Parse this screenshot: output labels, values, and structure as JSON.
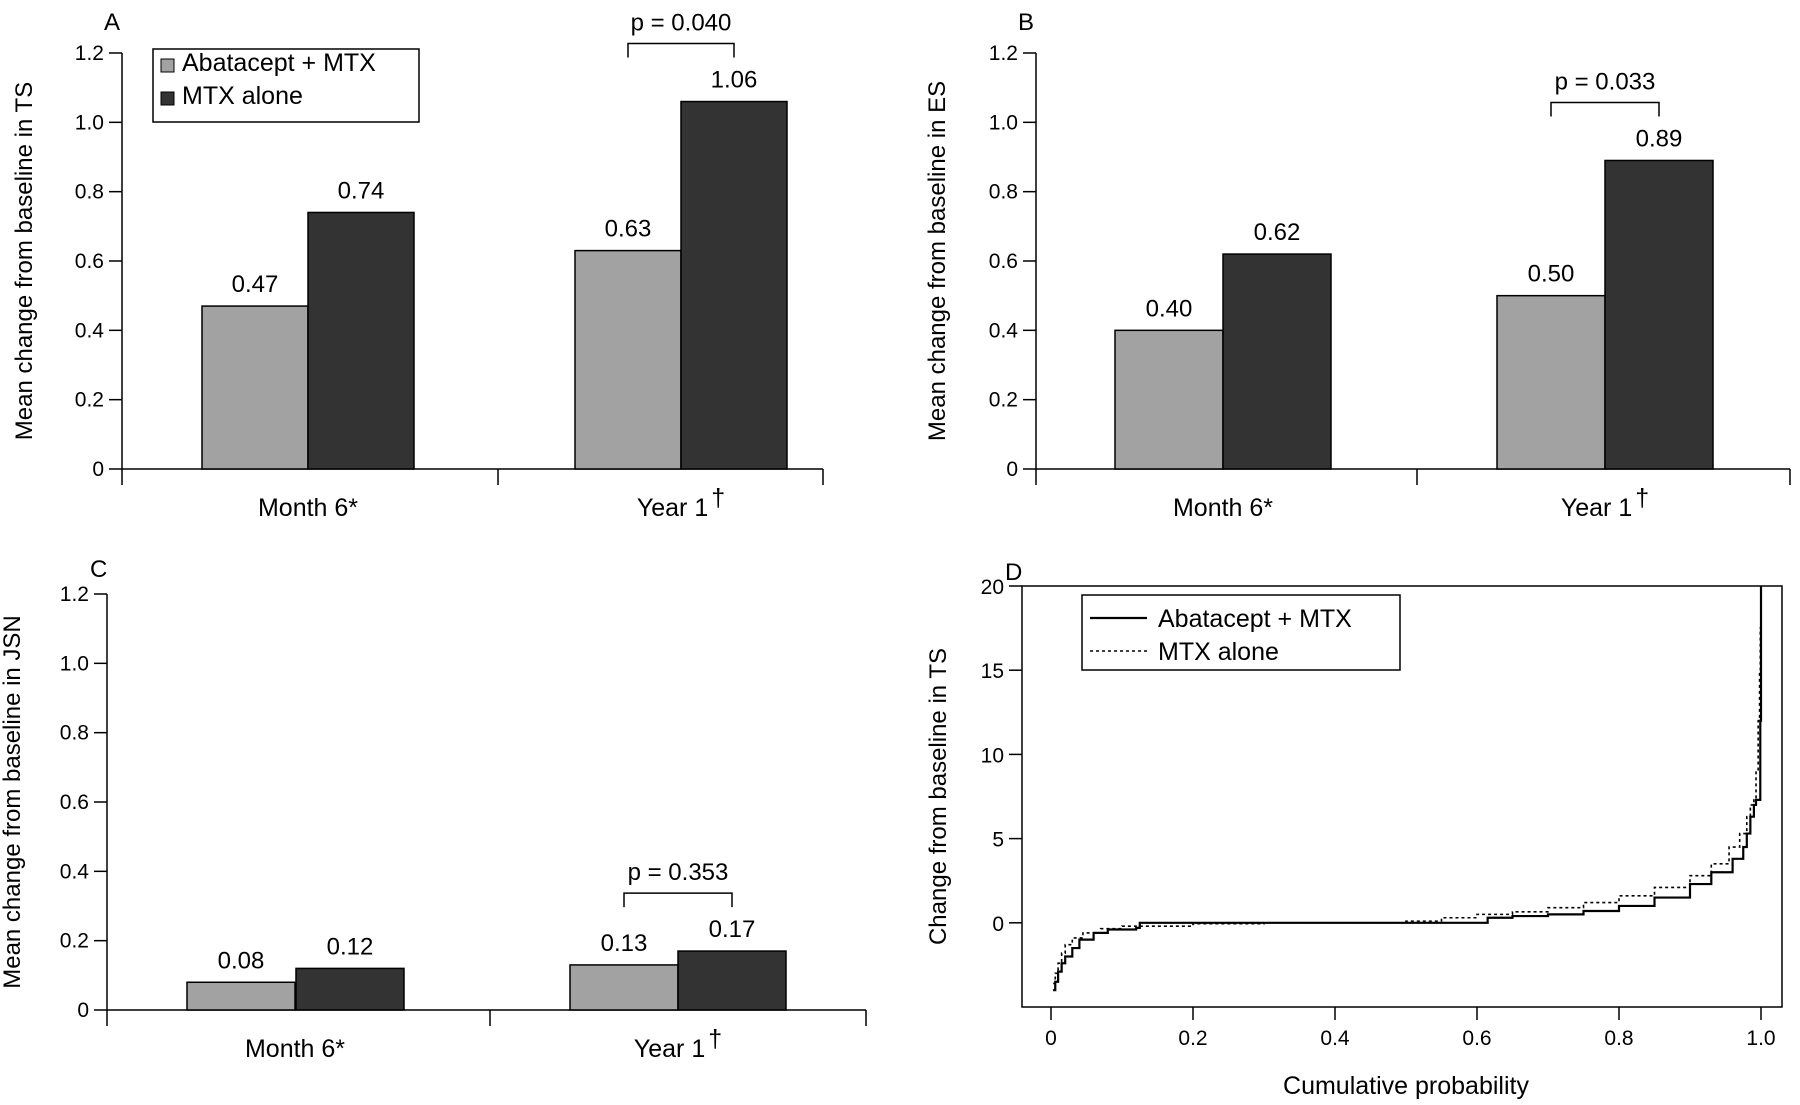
{
  "colors": {
    "abatacept": "#a2a2a2",
    "mtx": "#333333",
    "axis": "#000000"
  },
  "chart_data": [
    {
      "panel": "A",
      "type": "bar",
      "ylabel": "Mean change from baseline in TS",
      "ylim": [
        0,
        1.2
      ],
      "yticks": [
        "0",
        "0.2",
        "0.4",
        "0.6",
        "0.8",
        "1.0",
        "1.2"
      ],
      "categories": [
        "Month 6*",
        "Year 1"
      ],
      "category_marks": [
        "",
        "†"
      ],
      "series": [
        {
          "name": "Abatacept + MTX",
          "values": [
            0.47,
            0.63
          ],
          "labels": [
            "0.47",
            "0.63"
          ]
        },
        {
          "name": "MTX alone",
          "values": [
            0.74,
            1.06
          ],
          "labels": [
            "0.74",
            "1.06"
          ]
        }
      ],
      "pvalue": {
        "category_index": 1,
        "text": "p = 0.040"
      },
      "legend": "top-left"
    },
    {
      "panel": "B",
      "type": "bar",
      "ylabel": "Mean change from baseline in ES",
      "ylim": [
        0,
        1.2
      ],
      "yticks": [
        "0",
        "0.2",
        "0.4",
        "0.6",
        "0.8",
        "1.0",
        "1.2"
      ],
      "categories": [
        "Month 6*",
        "Year 1"
      ],
      "category_marks": [
        "",
        "†"
      ],
      "series": [
        {
          "name": "Abatacept + MTX",
          "values": [
            0.4,
            0.5
          ],
          "labels": [
            "0.40",
            "0.50"
          ]
        },
        {
          "name": "MTX alone",
          "values": [
            0.62,
            0.89
          ],
          "labels": [
            "0.62",
            "0.89"
          ]
        }
      ],
      "pvalue": {
        "category_index": 1,
        "text": "p = 0.033"
      }
    },
    {
      "panel": "C",
      "type": "bar",
      "ylabel": "Mean change from baseline in JSN",
      "ylim": [
        0,
        1.2
      ],
      "yticks": [
        "0",
        "0.2",
        "0.4",
        "0.6",
        "0.8",
        "1.0",
        "1.2"
      ],
      "categories": [
        "Month 6*",
        "Year 1"
      ],
      "category_marks": [
        "",
        "†"
      ],
      "series": [
        {
          "name": "Abatacept + MTX",
          "values": [
            0.08,
            0.13
          ],
          "labels": [
            "0.08",
            "0.13"
          ]
        },
        {
          "name": "MTX alone",
          "values": [
            0.12,
            0.17
          ],
          "labels": [
            "0.12",
            "0.17"
          ]
        }
      ],
      "pvalue": {
        "category_index": 1,
        "text": "p = 0.353"
      }
    },
    {
      "panel": "D",
      "type": "line",
      "xlabel": "Cumulative probability",
      "ylabel": "Change from baseline in TS",
      "xlim": [
        0,
        1
      ],
      "ylim": [
        -5,
        20
      ],
      "xticks": [
        "0",
        "0.2",
        "0.4",
        "0.6",
        "0.8",
        "1.0"
      ],
      "xtick_values": [
        0,
        0.2,
        0.4,
        0.6,
        0.8,
        1.0
      ],
      "yticks": [
        "0",
        "5",
        "10",
        "15",
        "20"
      ],
      "ytick_values": [
        0,
        5,
        10,
        15,
        20
      ],
      "legend": "top-left",
      "series": [
        {
          "name": "Abatacept + MTX",
          "line_style": "solid",
          "points": [
            [
              0.003,
              -4.0
            ],
            [
              0.006,
              -3.5
            ],
            [
              0.01,
              -2.9
            ],
            [
              0.015,
              -2.4
            ],
            [
              0.02,
              -2.0
            ],
            [
              0.03,
              -1.5
            ],
            [
              0.04,
              -1.0
            ],
            [
              0.06,
              -0.6
            ],
            [
              0.08,
              -0.4
            ],
            [
              0.12,
              -0.3
            ],
            [
              0.125,
              0.0
            ],
            [
              0.3,
              0.0
            ],
            [
              0.5,
              0.0
            ],
            [
              0.6,
              0.0
            ],
            [
              0.615,
              0.3
            ],
            [
              0.65,
              0.4
            ],
            [
              0.7,
              0.5
            ],
            [
              0.75,
              0.7
            ],
            [
              0.8,
              1.0
            ],
            [
              0.85,
              1.5
            ],
            [
              0.9,
              2.3
            ],
            [
              0.93,
              3.0
            ],
            [
              0.96,
              3.8
            ],
            [
              0.975,
              4.5
            ],
            [
              0.98,
              5.3
            ],
            [
              0.985,
              6.3
            ],
            [
              0.99,
              7.0
            ],
            [
              0.993,
              7.3
            ],
            [
              0.998,
              7.3
            ],
            [
              0.999,
              12.0
            ],
            [
              1.0,
              20.0
            ]
          ]
        },
        {
          "name": "MTX alone",
          "line_style": "dotted",
          "points": [
            [
              0.003,
              -3.6
            ],
            [
              0.006,
              -3.0
            ],
            [
              0.01,
              -2.4
            ],
            [
              0.015,
              -1.8
            ],
            [
              0.02,
              -1.3
            ],
            [
              0.03,
              -0.9
            ],
            [
              0.045,
              -0.6
            ],
            [
              0.07,
              -0.35
            ],
            [
              0.1,
              -0.2
            ],
            [
              0.2,
              -0.05
            ],
            [
              0.3,
              0.0
            ],
            [
              0.5,
              0.1
            ],
            [
              0.55,
              0.3
            ],
            [
              0.6,
              0.5
            ],
            [
              0.65,
              0.65
            ],
            [
              0.7,
              0.9
            ],
            [
              0.75,
              1.2
            ],
            [
              0.8,
              1.6
            ],
            [
              0.85,
              2.1
            ],
            [
              0.9,
              2.8
            ],
            [
              0.93,
              3.5
            ],
            [
              0.955,
              4.5
            ],
            [
              0.97,
              5.3
            ],
            [
              0.98,
              6.3
            ],
            [
              0.985,
              7.0
            ],
            [
              0.99,
              7.3
            ],
            [
              0.993,
              9.0
            ],
            [
              0.996,
              12.0
            ],
            [
              0.998,
              15.0
            ],
            [
              0.999,
              17.5
            ],
            [
              1.0,
              20.0
            ]
          ]
        }
      ]
    }
  ]
}
